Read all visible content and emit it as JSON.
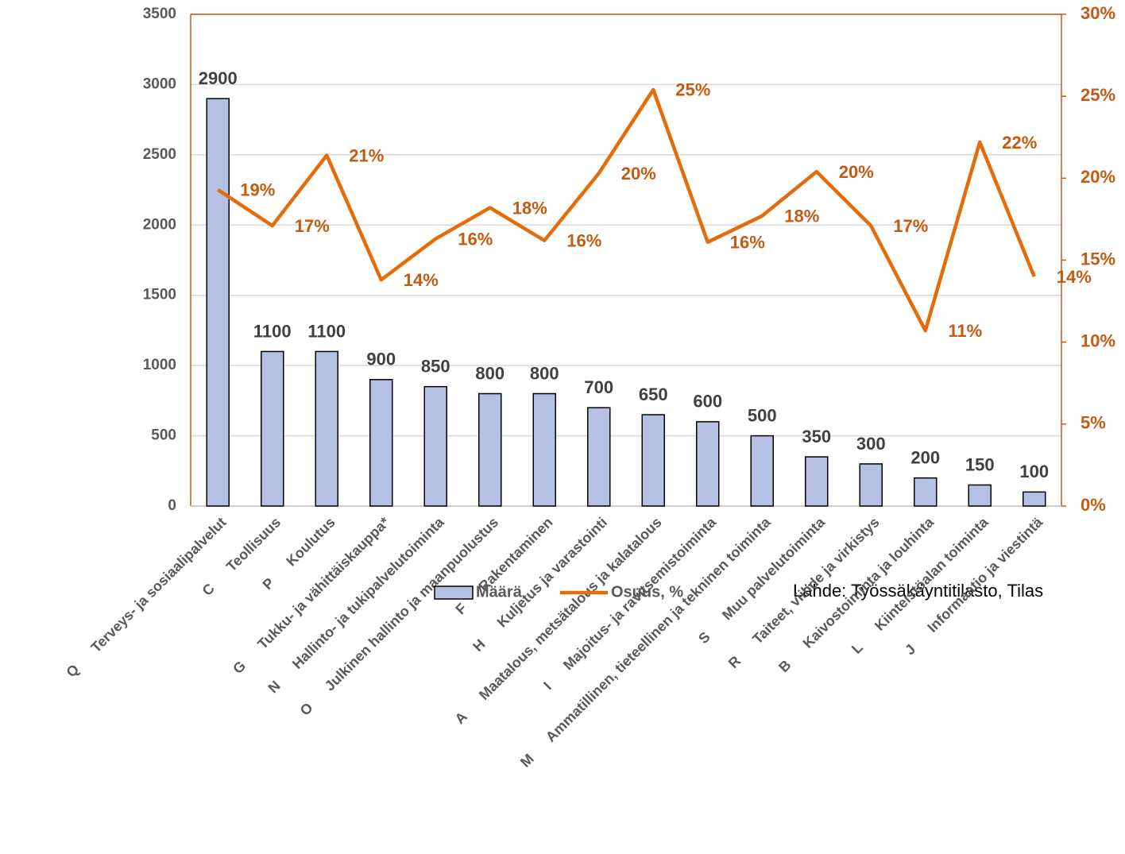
{
  "chart_data": {
    "type": "bar-line",
    "codes": [
      "Q",
      "C",
      "P",
      "G",
      "N",
      "O",
      "F",
      "H",
      "A",
      "I",
      "M",
      "S",
      "R",
      "B",
      "L",
      "J"
    ],
    "categories": [
      "Terveys- ja sosiaalipalvelut",
      "Teollisuus",
      "Koulutus",
      "Tukku- ja vähittäiskauppa*",
      "Hallinto- ja tukipalvelutoiminta",
      "Julkinen hallinto ja maanpuolustus",
      "Rakentaminen",
      "Kuljetus ja varastointi",
      "Maatalous, metsätalous ja kalatalous",
      "Majoitus- ja ravitsemistoiminta",
      "Ammatillinen, tieteellinen ja tekninen toiminta",
      "Muu palvelutoiminta",
      "Taiteet, viihde ja virkistys",
      "Kaivostoiminta ja louhinta",
      "Kiinteistöalan toiminta",
      "Informaatio ja viestintä"
    ],
    "series": [
      {
        "name": "Määrä",
        "type": "bar",
        "color": "#b4c0e4",
        "values": [
          2900,
          1100,
          1100,
          900,
          850,
          800,
          800,
          700,
          650,
          600,
          500,
          350,
          300,
          200,
          150,
          100
        ]
      },
      {
        "name": "Osuus, %",
        "type": "line",
        "axis": "y2",
        "color": "#e46c0a",
        "values": [
          19.3,
          17.1,
          21.4,
          13.8,
          16.3,
          18.2,
          16.2,
          20.3,
          25.4,
          16.1,
          17.7,
          20.4,
          17.1,
          10.7,
          22.2,
          14.0
        ],
        "value_labels": [
          "19%",
          "17%",
          "21%",
          "14%",
          "16%",
          "18%",
          "16%",
          "20%",
          "25%",
          "16%",
          "18%",
          "20%",
          "17%",
          "11%",
          "22%",
          "14%"
        ]
      }
    ],
    "ylim": [
      0,
      3500
    ],
    "yticks": [
      0,
      500,
      1000,
      1500,
      2000,
      2500,
      3000,
      3500
    ],
    "y2lim": [
      0,
      30
    ],
    "y2ticks": [
      {
        "value": 0,
        "label": "0%"
      },
      {
        "value": 5,
        "label": "5%"
      },
      {
        "value": 10,
        "label": "10%"
      },
      {
        "value": 15,
        "label": "15%"
      },
      {
        "value": 20,
        "label": "20%"
      },
      {
        "value": 25,
        "label": "25%"
      },
      {
        "value": 30,
        "label": "30%"
      }
    ],
    "grid": true,
    "source": "Lähde: Työssäkäyntitilasto, Tilas"
  }
}
